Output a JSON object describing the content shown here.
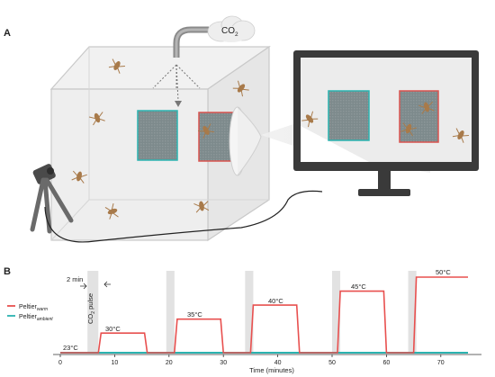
{
  "panel_a": {
    "label": "A",
    "co2": {
      "text": "CO",
      "sub": "2"
    }
  },
  "panel_b": {
    "label": "B",
    "annotations": {
      "interval": "2 min",
      "pulse_main": "CO",
      "pulse_sub": "2",
      "pulse_tail": " pulse"
    },
    "legend": [
      {
        "name": "Peltier",
        "sub": "warm",
        "color": "#e8504f"
      },
      {
        "name": "Peltier",
        "sub": "ambient",
        "color": "#2bb3b0"
      }
    ],
    "step_labels": [
      "23°C",
      "30°C",
      "35°C",
      "40°C",
      "45°C",
      "50°C"
    ]
  },
  "chart_data": {
    "type": "line",
    "xlabel": "Time (minutes)",
    "xlim": [
      0,
      75
    ],
    "x_ticks": [
      0,
      10,
      20,
      30,
      40,
      50,
      60,
      70
    ],
    "ambient_temp": 23,
    "warm_series": {
      "x": [
        0,
        7,
        7.5,
        15.5,
        16,
        21,
        21.5,
        29.5,
        30,
        35,
        35.5,
        43.5,
        44,
        51,
        51.5,
        59.5,
        60,
        65,
        65.5,
        75
      ],
      "y": [
        23,
        23,
        30,
        30,
        23,
        23,
        35,
        35,
        23,
        23,
        40,
        40,
        23,
        23,
        45,
        45,
        23,
        23,
        50,
        50
      ]
    },
    "ambient_series": {
      "x": [
        0,
        75
      ],
      "y": [
        23,
        23
      ]
    },
    "co2_pulses": [
      {
        "start": 5,
        "end": 7
      },
      {
        "start": 19.5,
        "end": 21
      },
      {
        "start": 34,
        "end": 35.5
      },
      {
        "start": 50,
        "end": 51.5
      },
      {
        "start": 64,
        "end": 65.5
      }
    ]
  }
}
